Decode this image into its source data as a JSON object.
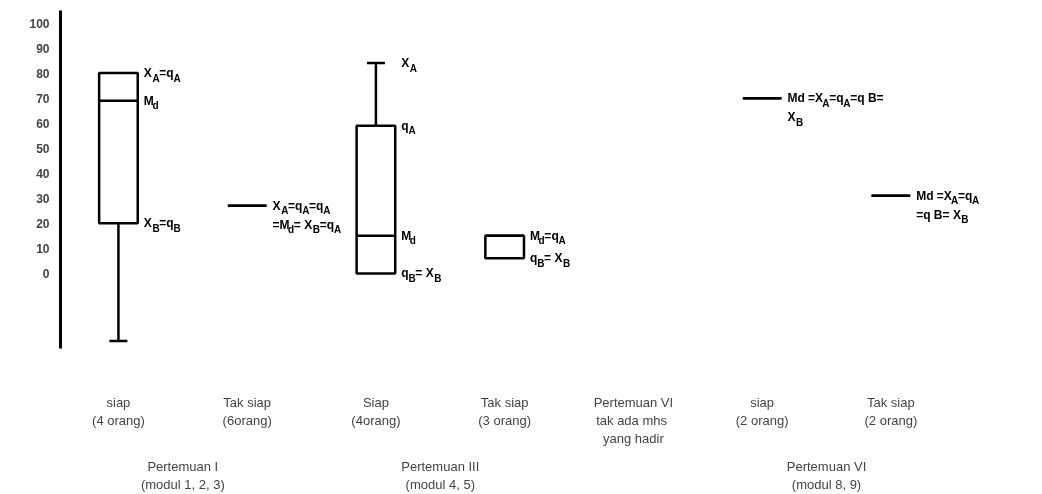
{
  "chart_data": {
    "type": "box",
    "categories": [
      "siap\n(4 orang)",
      "Tak siap\n(6orang)",
      "Siap\n(4orang)",
      "Tak siap\n(3 orang)",
      "Pertemuan VI\ntak ada  mhs\nyang hadir",
      "siap\n(2 orang)",
      "Tak siap\n(2 orang)"
    ],
    "series": [
      {
        "color": "#000000",
        "boxes": [
          {
            "low": -27,
            "q1": 20,
            "median": 69,
            "q3": 80,
            "high": 80
          },
          {
            "low": 27,
            "q1": 27,
            "median": 27,
            "q3": 27,
            "high": 27
          },
          {
            "low": 0,
            "q1": 0,
            "median": 15,
            "q3": 59,
            "high": 84
          },
          {
            "low": 6,
            "q1": 6,
            "median": 15,
            "q3": 15,
            "high": 15
          },
          null,
          {
            "low": 70,
            "q1": 70,
            "median": 70,
            "q3": 70,
            "high": 70
          },
          {
            "low": 31,
            "q1": 31,
            "median": 31,
            "q3": 31,
            "high": 31
          }
        ]
      }
    ],
    "ylim": [
      -30,
      105
    ],
    "yticks": [
      0,
      10,
      20,
      30,
      40,
      50,
      60,
      70,
      80,
      90,
      100
    ],
    "grid": false,
    "annotations": [
      {
        "text": "X$_{A}$=q$_{A}$",
        "x": "siap\n(4 orang)",
        "y": 80
      },
      {
        "text": "M$_{d}$",
        "x": "siap\n(4 orang)",
        "y": 69
      },
      {
        "text": "X$_{B}$=q$_{B}$",
        "x": "siap\n(4 orang)",
        "y": 20
      },
      {
        "text": "X$_{A}$=q$_{A}$=q$_{A}$",
        "x": "Tak siap\n(6orang)",
        "y": 27
      },
      {
        "text": "=M$_{d}$= X$_{B}$=q$_{A}$",
        "x": "Tak siap\n(6orang)",
        "y": 27
      },
      {
        "text": "X$_{A}$",
        "x": "Siap\n(4orang)",
        "y": 84
      },
      {
        "text": "q$_{A}$",
        "x": "Siap\n(4orang)",
        "y": 59
      },
      {
        "text": "M$_{d}$",
        "x": "Siap\n(4orang)",
        "y": 15
      },
      {
        "text": "q$_{B}$= X$_{B}$",
        "x": "Siap\n(4orang)",
        "y": 0
      },
      {
        "text": "M$_{d}$=q$_{A}$",
        "x": "Tak siap\n(3 orang)",
        "y": 15
      },
      {
        "text": "q$_{B}$= X$_{B}$",
        "x": "Tak siap\n(3 orang)",
        "y": 6
      },
      {
        "text": "Md =X$_{A}$=q$_{A}$=q B=",
        "x": "siap\n(2 orang)",
        "y": 70
      },
      {
        "text": "X$_{B}$",
        "x": "siap\n(2 orang)",
        "y": 70
      },
      {
        "text": "Md =X$_{A}$=q$_{A}$",
        "x": "Tak siap\n(2 orang)",
        "y": 31
      },
      {
        "text": "=q B= X$_{B}$",
        "x": "Tak siap\n(2 orang)",
        "y": 31
      },
      "Pertemuan I\n(modul 1, 2, 3)",
      "Pertemuan III\n(modul 4, 5)",
      "Pertemuan VI\n(modul 8, 9)"
    ]
  }
}
